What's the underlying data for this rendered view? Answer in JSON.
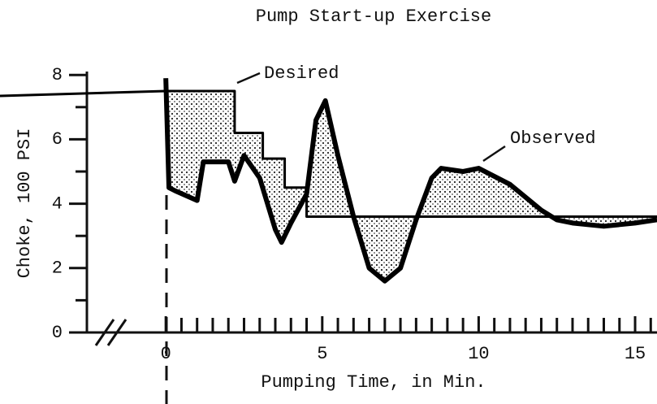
{
  "chart_data": {
    "type": "line",
    "title": "Pump Start-up Exercise",
    "xlabel": "Pumping Time, in Min.",
    "ylabel": "Choke, 100 PSI",
    "xlim": [
      -5.3,
      15.7
    ],
    "ylim": [
      0,
      8.3
    ],
    "xticks": [
      0,
      5,
      10,
      15
    ],
    "yticks": [
      0,
      2,
      4,
      6,
      8
    ],
    "xminorticks": [
      0.5,
      1,
      1.5,
      2,
      2.5,
      3,
      3.5,
      4,
      4.5,
      5.5,
      6,
      6.5,
      7,
      7.5,
      8,
      8.5,
      9,
      9.5,
      10.5,
      11,
      11.5,
      12,
      12.5,
      13,
      13.5,
      14,
      14.5,
      15.5
    ],
    "yminorticks": [
      1,
      3,
      5,
      7
    ],
    "series": [
      {
        "name": "Desired",
        "color": "#000000",
        "x": [
          -5.3,
          0,
          2.2,
          2.2,
          3.1,
          3.1,
          3.8,
          3.8,
          4.5,
          4.5,
          15.7
        ],
        "values": [
          7.35,
          7.5,
          7.5,
          6.2,
          6.2,
          5.4,
          5.4,
          4.5,
          4.5,
          3.6,
          3.6
        ]
      },
      {
        "name": "Observed",
        "color": "#000000",
        "x": [
          0,
          0.1,
          0.3,
          1,
          1.2,
          2,
          2.2,
          2.5,
          3,
          3.5,
          3.7,
          4,
          4.5,
          4.8,
          5.1,
          5.5,
          6,
          6.5,
          7,
          7.5,
          8,
          8.5,
          8.8,
          9.5,
          10,
          11,
          12,
          12.5,
          13,
          14,
          15,
          15.7
        ],
        "values": [
          7.9,
          4.5,
          4.4,
          4.1,
          5.3,
          5.3,
          4.7,
          5.5,
          4.8,
          3.2,
          2.8,
          3.4,
          4.3,
          6.6,
          7.2,
          5.5,
          3.6,
          2.0,
          1.6,
          2.0,
          3.5,
          4.8,
          5.1,
          5.0,
          5.1,
          4.6,
          3.8,
          3.5,
          3.4,
          3.3,
          3.4,
          3.5
        ]
      }
    ]
  }
}
